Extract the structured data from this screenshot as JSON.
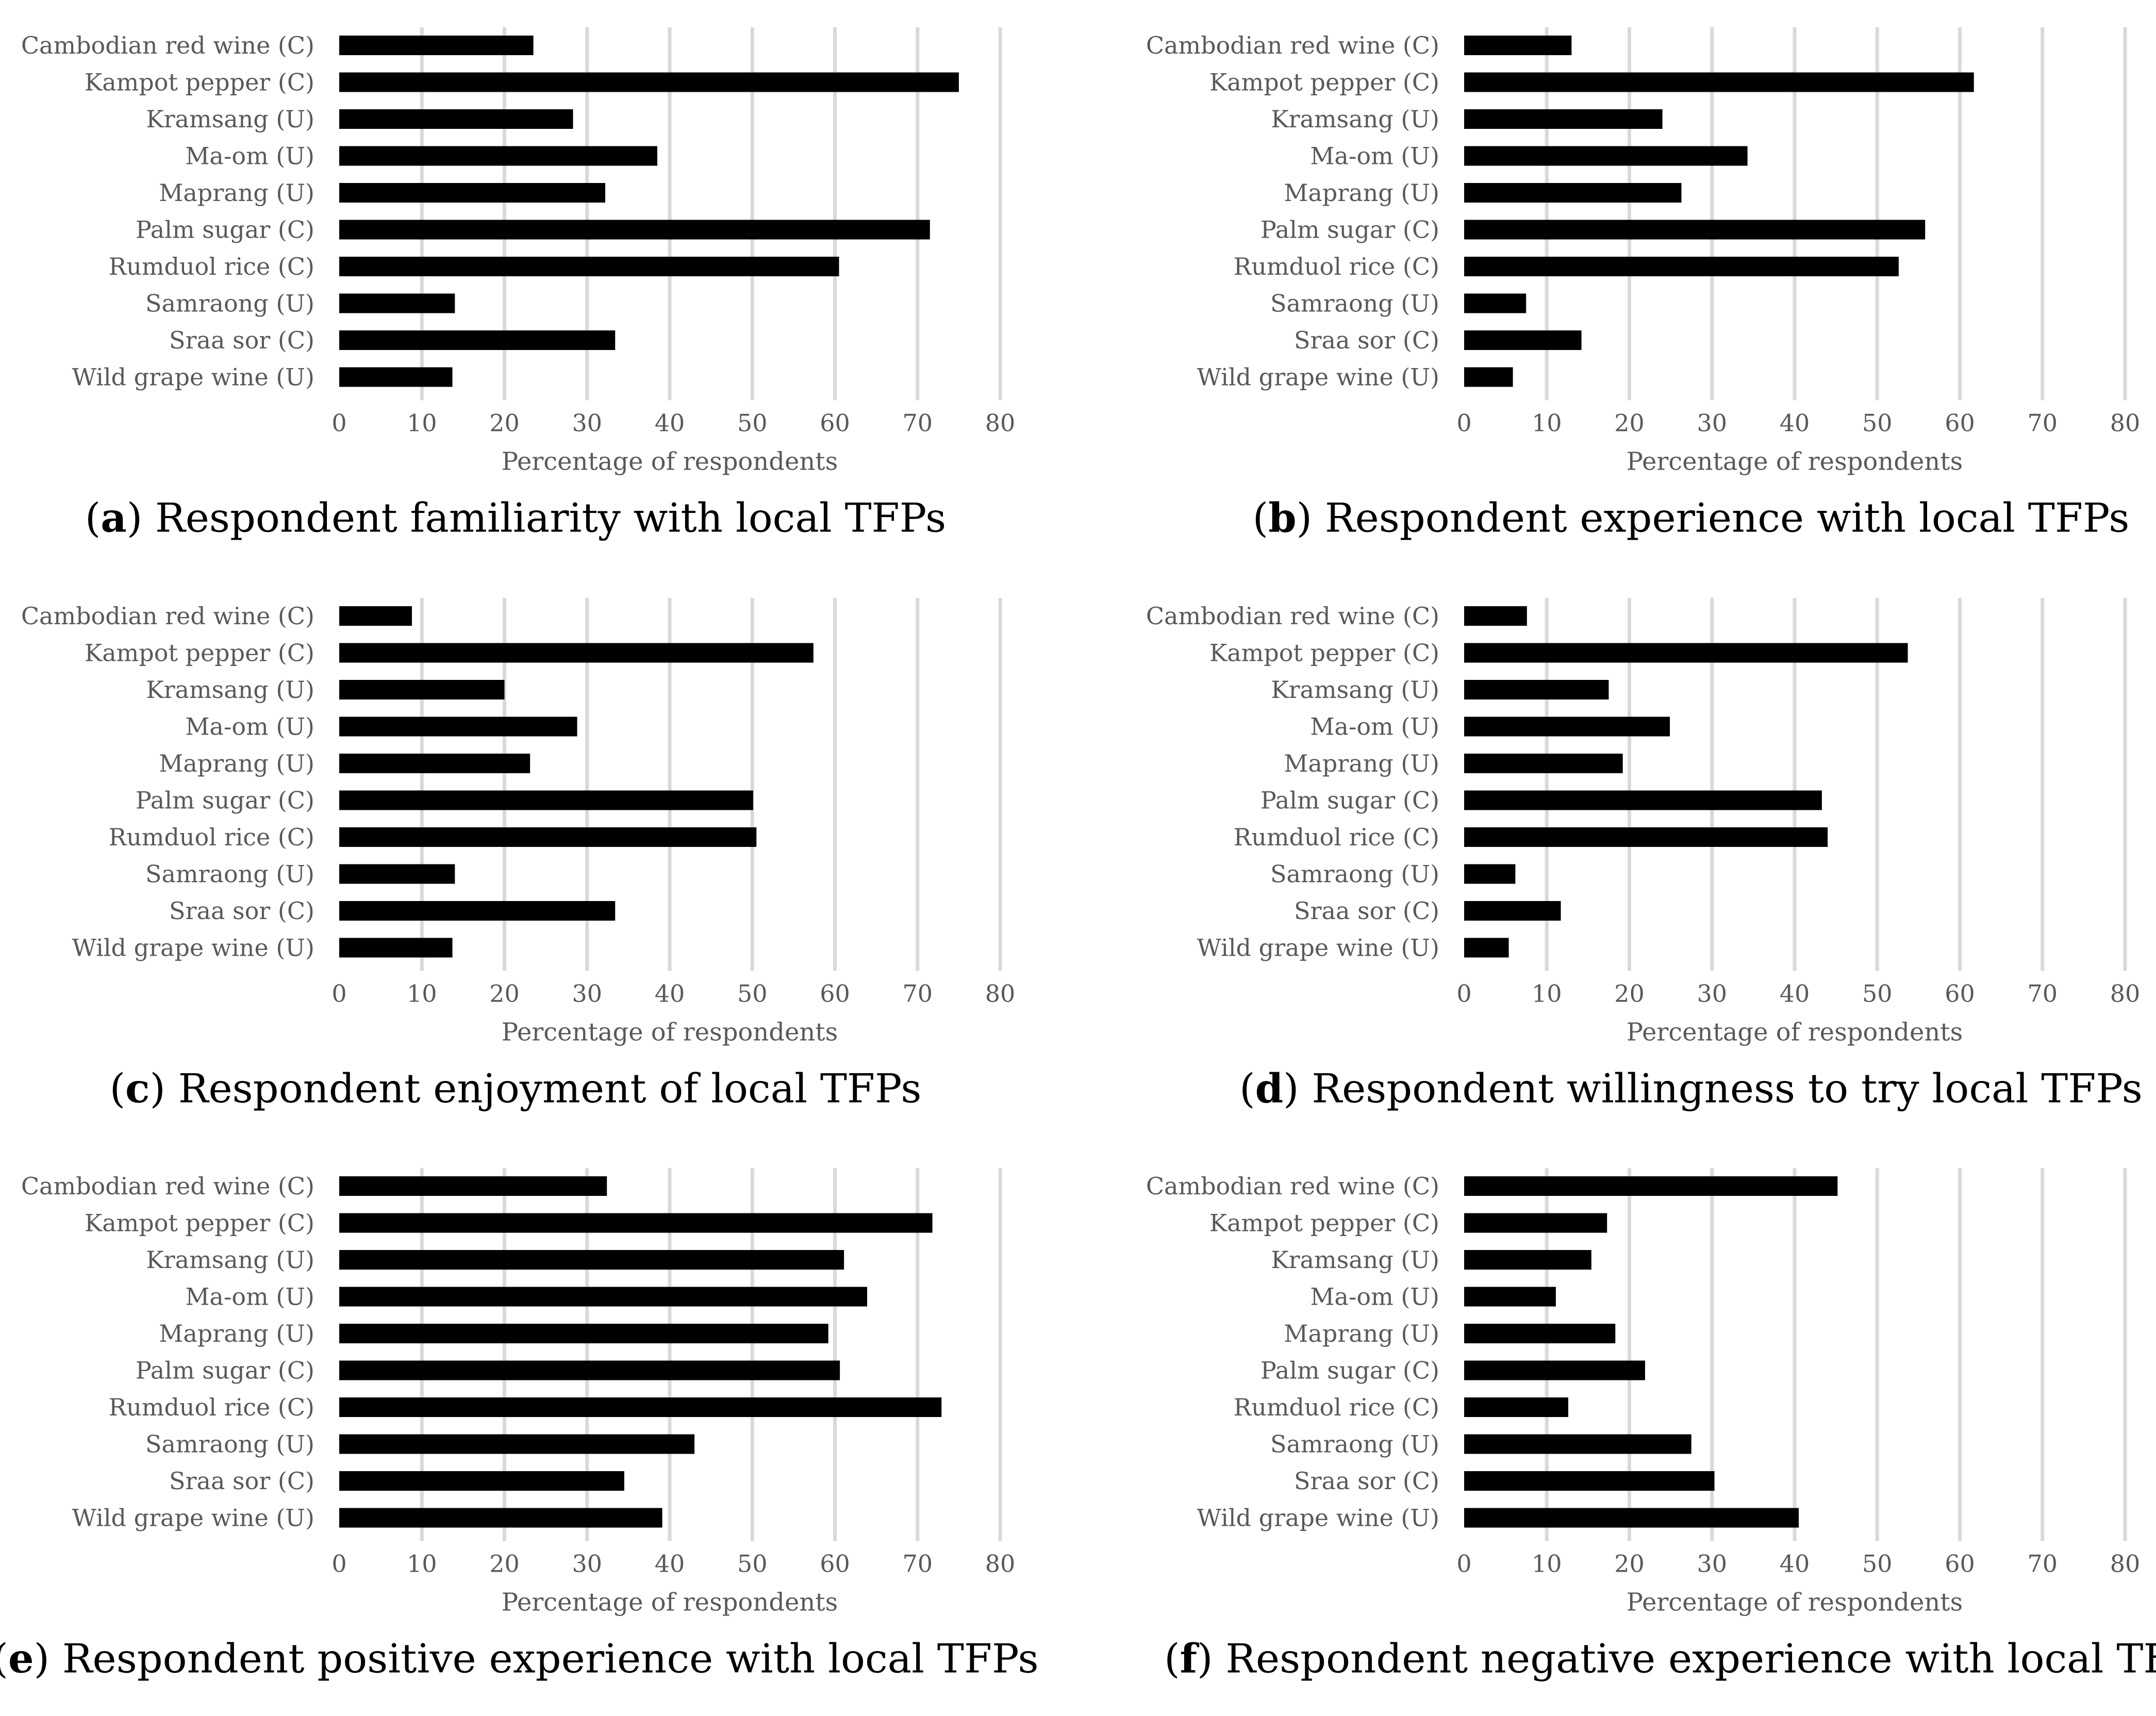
{
  "chart_data": [
    {
      "type": "bar",
      "orientation": "horizontal",
      "panel_letter": "a",
      "title": "Respondent familiarity with local TFPs",
      "categories": [
        "Cambodian red wine (C)",
        "Kampot pepper (C)",
        "Kramsang (U)",
        "Ma-om (U)",
        "Maprang (U)",
        "Palm sugar (C)",
        "Rumduol rice (C)",
        "Samraong (U)",
        "Sraa sor (C)",
        "Wild grape wine (U)"
      ],
      "values": [
        23.5,
        75,
        28.3,
        38.5,
        32.2,
        71.5,
        60.5,
        14,
        33.4,
        13.7
      ],
      "xlabel": "Percentage of respondents",
      "ylabel": "",
      "xlim": [
        0,
        80
      ],
      "xticks": [
        "0",
        "10",
        "20",
        "30",
        "40",
        "50",
        "60",
        "70",
        "80"
      ]
    },
    {
      "type": "bar",
      "orientation": "horizontal",
      "panel_letter": "b",
      "title": "Respondent experience with local TFPs",
      "categories": [
        "Cambodian red wine (C)",
        "Kampot pepper (C)",
        "Kramsang (U)",
        "Ma-om (U)",
        "Maprang (U)",
        "Palm sugar (C)",
        "Rumduol rice (C)",
        "Samraong (U)",
        "Sraa sor (C)",
        "Wild grape wine (U)"
      ],
      "values": [
        13,
        61.7,
        24,
        34.3,
        26.3,
        55.8,
        52.6,
        7.5,
        14.2,
        5.9
      ],
      "xlabel": "Percentage of respondents",
      "ylabel": "",
      "xlim": [
        0,
        80
      ],
      "xticks": [
        "0",
        "10",
        "20",
        "30",
        "40",
        "50",
        "60",
        "70",
        "80"
      ]
    },
    {
      "type": "bar",
      "orientation": "horizontal",
      "panel_letter": "c",
      "title": "Respondent enjoyment of local TFPs",
      "categories": [
        "Cambodian red wine (C)",
        "Kampot pepper (C)",
        "Kramsang (U)",
        "Ma-om (U)",
        "Maprang (U)",
        "Palm sugar (C)",
        "Rumduol rice (C)",
        "Samraong (U)",
        "Sraa sor (C)",
        "Wild grape wine (U)"
      ],
      "values": [
        8.8,
        57.4,
        20,
        28.8,
        23.1,
        50.1,
        50.5,
        14,
        33.4,
        13.7
      ],
      "xlabel": "Percentage of respondents",
      "ylabel": "",
      "xlim": [
        0,
        80
      ],
      "xticks": [
        "0",
        "10",
        "20",
        "30",
        "40",
        "50",
        "60",
        "70",
        "80"
      ]
    },
    {
      "type": "bar",
      "orientation": "horizontal",
      "panel_letter": "d",
      "title": "Respondent willingness to try local TFPs",
      "categories": [
        "Cambodian red wine (C)",
        "Kampot pepper (C)",
        "Kramsang (U)",
        "Ma-om (U)",
        "Maprang (U)",
        "Palm sugar (C)",
        "Rumduol rice (C)",
        "Samraong (U)",
        "Sraa sor (C)",
        "Wild grape wine (U)"
      ],
      "values": [
        7.6,
        53.7,
        17.5,
        24.9,
        19.2,
        43.3,
        44,
        6.2,
        11.7,
        5.4
      ],
      "xlabel": "Percentage of respondents",
      "ylabel": "",
      "xlim": [
        0,
        80
      ],
      "xticks": [
        "0",
        "10",
        "20",
        "30",
        "40",
        "50",
        "60",
        "70",
        "80"
      ]
    },
    {
      "type": "bar",
      "orientation": "horizontal",
      "panel_letter": "e",
      "title": "Respondent positive experience with local TFPs",
      "categories": [
        "Cambodian red wine (C)",
        "Kampot pepper (C)",
        "Kramsang (U)",
        "Ma-om (U)",
        "Maprang (U)",
        "Palm sugar (C)",
        "Rumduol rice (C)",
        "Samraong (U)",
        "Sraa sor (C)",
        "Wild grape wine (U)"
      ],
      "values": [
        32.4,
        71.8,
        61.1,
        63.9,
        59.2,
        60.6,
        72.9,
        43,
        34.5,
        39.1
      ],
      "xlabel": "Percentage of respondents",
      "ylabel": "",
      "xlim": [
        0,
        80
      ],
      "xticks": [
        "0",
        "10",
        "20",
        "30",
        "40",
        "50",
        "60",
        "70",
        "80"
      ]
    },
    {
      "type": "bar",
      "orientation": "horizontal",
      "panel_letter": "f",
      "title": "Respondent negative experience with local TFPs",
      "categories": [
        "Cambodian red wine (C)",
        "Kampot pepper (C)",
        "Kramsang (U)",
        "Ma-om (U)",
        "Maprang (U)",
        "Palm sugar (C)",
        "Rumduol rice (C)",
        "Samraong (U)",
        "Sraa sor (C)",
        "Wild grape wine (U)"
      ],
      "values": [
        45.2,
        17.3,
        15.4,
        11.1,
        18.3,
        21.9,
        12.6,
        27.5,
        30.3,
        40.5
      ],
      "xlabel": "Percentage of respondents",
      "ylabel": "",
      "xlim": [
        0,
        80
      ],
      "xticks": [
        "0",
        "10",
        "20",
        "30",
        "40",
        "50",
        "60",
        "70",
        "80"
      ]
    }
  ]
}
